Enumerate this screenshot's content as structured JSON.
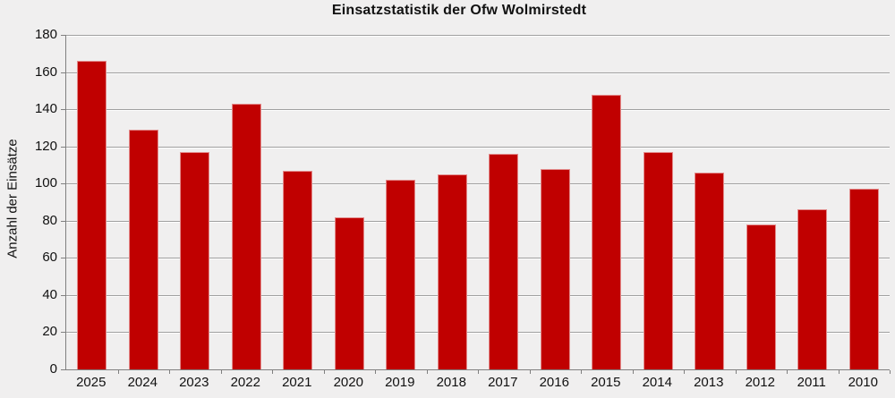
{
  "chart_data": {
    "type": "bar",
    "title": "Einsatzstatistik der Ofw Wolmirstedt",
    "ylabel": "Anzahl der Einsätze",
    "xlabel": "",
    "categories": [
      "2025",
      "2024",
      "2023",
      "2022",
      "2021",
      "2020",
      "2019",
      "2018",
      "2017",
      "2016",
      "2015",
      "2014",
      "2013",
      "2012",
      "2011",
      "2010"
    ],
    "values": [
      166,
      129,
      117,
      143,
      107,
      82,
      102,
      105,
      116,
      108,
      148,
      117,
      106,
      78,
      86,
      97
    ],
    "ylim": [
      0,
      180
    ],
    "ytick_step": 20,
    "yticks": [
      0,
      20,
      40,
      60,
      80,
      100,
      120,
      140,
      160,
      180
    ],
    "grid": true,
    "legend": false,
    "bar_color": "#c00000",
    "background_color": "#f0efef",
    "gridline_color": "#a0a0a0",
    "axis_color": "#808080",
    "text_color": "#111111"
  }
}
